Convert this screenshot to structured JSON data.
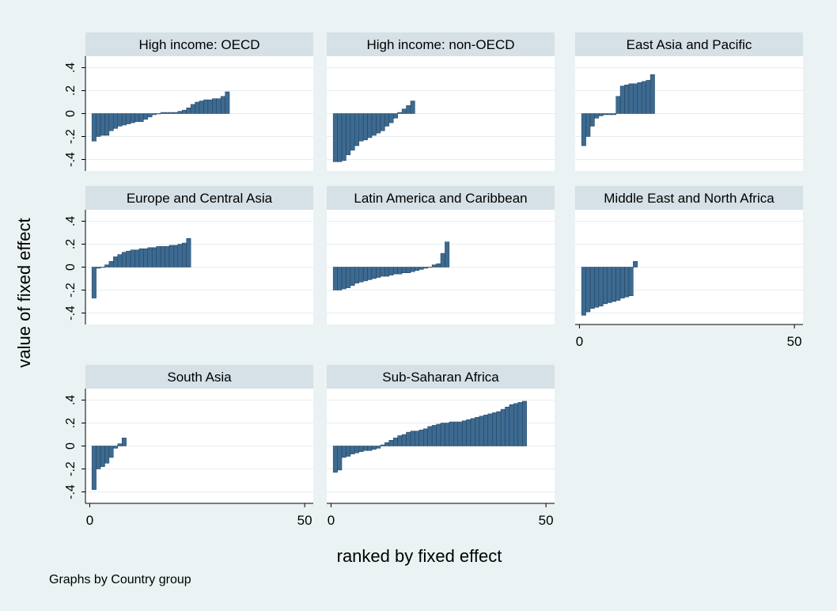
{
  "chart_data": {
    "type": "bar",
    "ylabel": "value of fixed effect",
    "xlabel": "ranked by fixed effect",
    "note": "Graphs by Country group",
    "y_ticks": [
      "-.4",
      "-.2",
      "0",
      ".2",
      ".4"
    ],
    "y_tick_values": [
      -0.4,
      -0.2,
      0,
      0.2,
      0.4
    ],
    "x_ticks": [
      "0",
      "50"
    ],
    "x_tick_values": [
      0,
      50
    ],
    "ylim": [
      -0.5,
      0.5
    ],
    "xlim": [
      -1,
      52
    ],
    "bar_color": "#3d6a90",
    "panel_title_bg": "#d5e1e6",
    "background": "#eaf2f3",
    "panels": [
      {
        "title": "High income: OECD",
        "values": [
          -0.24,
          -0.2,
          -0.19,
          -0.19,
          -0.15,
          -0.13,
          -0.11,
          -0.1,
          -0.09,
          -0.08,
          -0.07,
          -0.07,
          -0.05,
          -0.03,
          -0.01,
          0.0,
          0.01,
          0.01,
          0.01,
          0.01,
          0.02,
          0.03,
          0.05,
          0.08,
          0.1,
          0.11,
          0.12,
          0.12,
          0.13,
          0.13,
          0.15,
          0.19
        ]
      },
      {
        "title": "High income: non-OECD",
        "values": [
          -0.42,
          -0.42,
          -0.41,
          -0.36,
          -0.32,
          -0.28,
          -0.24,
          -0.23,
          -0.21,
          -0.19,
          -0.17,
          -0.15,
          -0.11,
          -0.08,
          -0.04,
          0.01,
          0.04,
          0.07,
          0.11
        ]
      },
      {
        "title": "East Asia and Pacific",
        "values": [
          -0.28,
          -0.2,
          -0.11,
          -0.04,
          -0.02,
          -0.01,
          -0.01,
          -0.01,
          0.15,
          0.24,
          0.25,
          0.26,
          0.26,
          0.27,
          0.28,
          0.29,
          0.34
        ]
      },
      {
        "title": "Europe and Central Asia",
        "values": [
          -0.27,
          -0.01,
          0.0,
          0.02,
          0.05,
          0.09,
          0.11,
          0.13,
          0.14,
          0.15,
          0.15,
          0.16,
          0.16,
          0.17,
          0.17,
          0.18,
          0.18,
          0.18,
          0.19,
          0.19,
          0.2,
          0.21,
          0.25
        ]
      },
      {
        "title": "Latin America and Caribbean",
        "values": [
          -0.2,
          -0.2,
          -0.19,
          -0.18,
          -0.16,
          -0.14,
          -0.13,
          -0.12,
          -0.11,
          -0.1,
          -0.09,
          -0.08,
          -0.08,
          -0.07,
          -0.06,
          -0.06,
          -0.05,
          -0.05,
          -0.04,
          -0.03,
          -0.02,
          -0.01,
          0.0,
          0.02,
          0.03,
          0.12,
          0.22
        ]
      },
      {
        "title": "Middle East and North Africa",
        "values": [
          -0.42,
          -0.39,
          -0.36,
          -0.35,
          -0.34,
          -0.32,
          -0.31,
          -0.3,
          -0.29,
          -0.27,
          -0.26,
          -0.25,
          0.05
        ]
      },
      {
        "title": "South Asia",
        "values": [
          -0.38,
          -0.2,
          -0.18,
          -0.15,
          -0.1,
          -0.02,
          0.02,
          0.07
        ]
      },
      {
        "title": "Sub-Saharan Africa",
        "values": [
          -0.23,
          -0.21,
          -0.1,
          -0.09,
          -0.07,
          -0.06,
          -0.05,
          -0.04,
          -0.04,
          -0.03,
          -0.02,
          0.01,
          0.03,
          0.05,
          0.07,
          0.09,
          0.1,
          0.12,
          0.13,
          0.13,
          0.14,
          0.15,
          0.17,
          0.18,
          0.19,
          0.2,
          0.2,
          0.21,
          0.21,
          0.21,
          0.22,
          0.23,
          0.24,
          0.25,
          0.26,
          0.27,
          0.28,
          0.29,
          0.3,
          0.32,
          0.34,
          0.36,
          0.37,
          0.38,
          0.39
        ]
      }
    ]
  }
}
